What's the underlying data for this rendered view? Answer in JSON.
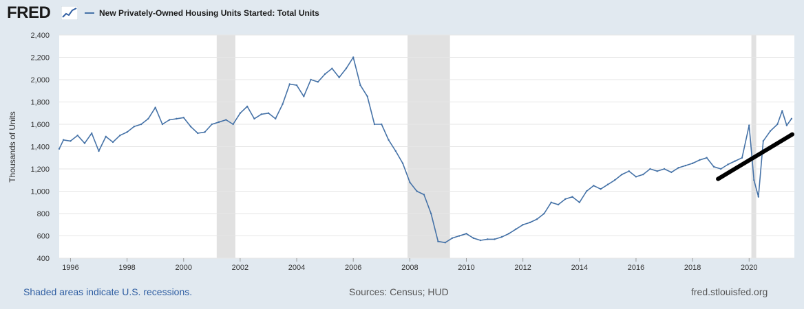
{
  "header": {
    "logo_text": "FRED",
    "logo_icon": "chart-trend-icon",
    "series_title": "New Privately-Owned Housing Units Started: Total Units"
  },
  "footer": {
    "recession_note": "Shaded areas indicate U.S. recessions.",
    "sources": "Sources: Census; HUD",
    "site": "fred.stlouisfed.org"
  },
  "colors": {
    "page_background": "#e1e9f0",
    "plot_background": "#ffffff",
    "series_line": "#4572a7",
    "recession_shading": "#e1e1e1",
    "annotation_trendline": "#000000"
  },
  "chart_data": {
    "type": "line",
    "ylabel": "Thousands of Units",
    "xlim": [
      1995.6,
      2021.6
    ],
    "ylim": [
      400,
      2400
    ],
    "y_ticks": [
      400,
      600,
      800,
      1000,
      1200,
      1400,
      1600,
      1800,
      2000,
      2200,
      2400
    ],
    "y_tick_labels": [
      "400",
      "600",
      "800",
      "1,000",
      "1,200",
      "1,400",
      "1,600",
      "1,800",
      "2,000",
      "2,200",
      "2,400"
    ],
    "x_ticks": [
      1996,
      1998,
      2000,
      2002,
      2004,
      2006,
      2008,
      2010,
      2012,
      2014,
      2016,
      2018,
      2020
    ],
    "x_tick_labels": [
      "1996",
      "1998",
      "2000",
      "2002",
      "2004",
      "2006",
      "2008",
      "2010",
      "2012",
      "2014",
      "2016",
      "2018",
      "2020"
    ],
    "grid": "horizontal",
    "recessions": [
      [
        2001.17,
        2001.83
      ],
      [
        2007.92,
        2009.42
      ],
      [
        2020.08,
        2020.25
      ]
    ],
    "series": [
      {
        "x": [
          1995.6,
          1995.75,
          1996.0,
          1996.25,
          1996.5,
          1996.75,
          1997.0,
          1997.25,
          1997.5,
          1997.75,
          1998.0,
          1998.25,
          1998.5,
          1998.75,
          1999.0,
          1999.25,
          1999.5,
          1999.75,
          2000.0,
          2000.25,
          2000.5,
          2000.75,
          2001.0,
          2001.25,
          2001.5,
          2001.75,
          2002.0,
          2002.25,
          2002.5,
          2002.75,
          2003.0,
          2003.25,
          2003.5,
          2003.75,
          2004.0,
          2004.25,
          2004.5,
          2004.75,
          2005.0,
          2005.25,
          2005.5,
          2005.75,
          2006.0,
          2006.25,
          2006.5,
          2006.75,
          2007.0,
          2007.25,
          2007.5,
          2007.75,
          2008.0,
          2008.25,
          2008.5,
          2008.75,
          2009.0,
          2009.25,
          2009.5,
          2009.75,
          2010.0,
          2010.25,
          2010.5,
          2010.75,
          2011.0,
          2011.25,
          2011.5,
          2011.75,
          2012.0,
          2012.25,
          2012.5,
          2012.75,
          2013.0,
          2013.25,
          2013.5,
          2013.75,
          2014.0,
          2014.25,
          2014.5,
          2014.75,
          2015.0,
          2015.25,
          2015.5,
          2015.75,
          2016.0,
          2016.25,
          2016.5,
          2016.75,
          2017.0,
          2017.25,
          2017.5,
          2017.75,
          2018.0,
          2018.25,
          2018.5,
          2018.75,
          2019.0,
          2019.25,
          2019.5,
          2019.75,
          2020.0,
          2020.17,
          2020.33,
          2020.5,
          2020.75,
          2021.0,
          2021.17,
          2021.33,
          2021.5
        ],
        "values": [
          1380,
          1460,
          1450,
          1500,
          1430,
          1520,
          1360,
          1490,
          1440,
          1500,
          1530,
          1580,
          1600,
          1650,
          1750,
          1600,
          1640,
          1650,
          1660,
          1580,
          1520,
          1530,
          1600,
          1620,
          1640,
          1600,
          1700,
          1760,
          1650,
          1690,
          1700,
          1650,
          1780,
          1960,
          1950,
          1850,
          2000,
          1980,
          2050,
          2100,
          2020,
          2100,
          2200,
          1950,
          1850,
          1600,
          1600,
          1460,
          1360,
          1250,
          1080,
          1000,
          970,
          800,
          550,
          540,
          580,
          600,
          620,
          580,
          560,
          570,
          570,
          590,
          620,
          660,
          700,
          720,
          750,
          800,
          900,
          880,
          930,
          950,
          900,
          1000,
          1050,
          1020,
          1060,
          1100,
          1150,
          1180,
          1130,
          1150,
          1200,
          1180,
          1200,
          1170,
          1210,
          1230,
          1250,
          1280,
          1300,
          1220,
          1200,
          1240,
          1270,
          1300,
          1590,
          1100,
          950,
          1450,
          1540,
          1600,
          1720,
          1590,
          1650
        ]
      }
    ],
    "annotation": {
      "type": "hand-drawn-trendline",
      "x": [
        2018.9,
        2021.6
      ],
      "y": [
        1110,
        1510
      ]
    }
  }
}
